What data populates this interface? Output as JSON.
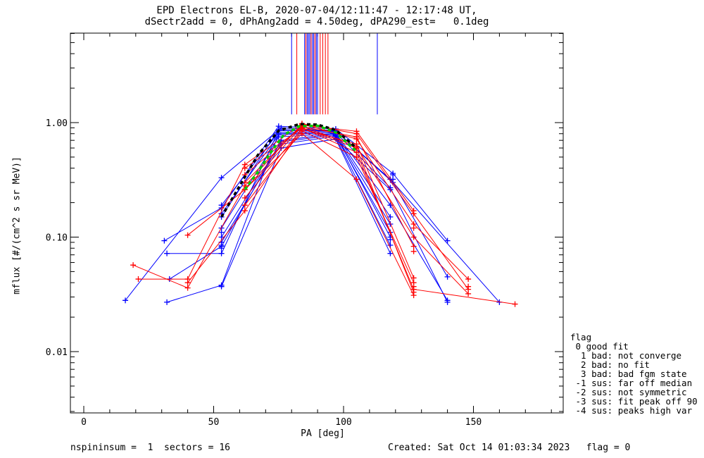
{
  "header": {
    "title_line1": "EPD Electrons EL-B, 2020-07-04/12:11:47 - 12:17:48 UT,",
    "title_line2": "dSectr2add = 0, dPhAng2add = 4.50deg, dPA290_est=   0.1deg"
  },
  "footer": {
    "left": "nspininsum =  1  sectors = 16",
    "right": "Created: Sat Oct 14 01:03:34 2023   flag = 0"
  },
  "legend": {
    "title": "flag",
    "items": [
      " 0 good fit",
      "  1 bad: not converge",
      "  2 bad: no fit",
      "  3 bad: bad fgm state",
      " -1 sus: far off median",
      " -2 sus: not symmetric",
      " -3 sus: fit peak off 90",
      " -4 sus: peaks high var"
    ]
  },
  "colors": {
    "red": "#ff0000",
    "blue": "#0000ff",
    "green": "#00cc00",
    "black": "#000000"
  },
  "chart_data": {
    "type": "line",
    "title": "EPD Electrons EL-B, 2020-07-04/12:11:47 - 12:17:48 UT,",
    "xlabel": "PA [deg]",
    "ylabel": "mflux [#/(cm^2 s sr MeV)]",
    "xlim": [
      -5,
      185
    ],
    "ylim": [
      0.003,
      6
    ],
    "yscale": "log",
    "xticks": [
      0,
      50,
      100,
      150
    ],
    "xtick_labels": [
      "0",
      "50",
      "100",
      "150"
    ],
    "yticks": [
      0.01,
      0.1,
      1.0
    ],
    "ytick_labels": [
      "0.01",
      "0.10",
      "1.00"
    ],
    "grid": false,
    "series": [
      {
        "color": "blue",
        "x": [
          31,
          53,
          75,
          97,
          119,
          140
        ],
        "y": [
          0.093,
          0.18,
          0.93,
          0.88,
          0.36,
          0.093
        ]
      },
      {
        "color": "blue",
        "x": [
          32,
          53,
          75,
          97,
          119,
          140
        ],
        "y": [
          0.072,
          0.072,
          0.85,
          0.85,
          0.3,
          0.045
        ]
      },
      {
        "color": "blue",
        "x": [
          32,
          53,
          75,
          97,
          118,
          140
        ],
        "y": [
          0.027,
          0.038,
          0.8,
          0.82,
          0.27,
          0.027
        ]
      },
      {
        "color": "blue",
        "x": [
          16,
          53,
          76,
          97,
          118,
          160
        ],
        "y": [
          0.028,
          0.33,
          0.9,
          0.85,
          0.32,
          0.027
        ]
      },
      {
        "color": "blue",
        "x": [
          33,
          53,
          76,
          97,
          118,
          140
        ],
        "y": [
          0.043,
          0.083,
          0.7,
          0.8,
          0.19,
          0.028
        ]
      },
      {
        "color": "blue",
        "x": [
          53,
          75,
          96,
          118
        ],
        "y": [
          0.16,
          0.78,
          0.82,
          0.085
        ]
      },
      {
        "color": "blue",
        "x": [
          53,
          75,
          96,
          118
        ],
        "y": [
          0.12,
          0.75,
          0.8,
          0.072
        ]
      },
      {
        "color": "blue",
        "x": [
          53,
          76,
          97,
          118
        ],
        "y": [
          0.1,
          0.68,
          0.78,
          0.1
        ]
      },
      {
        "color": "blue",
        "x": [
          53,
          76,
          97,
          118
        ],
        "y": [
          0.09,
          0.65,
          0.76,
          0.11
        ]
      },
      {
        "color": "blue",
        "x": [
          53,
          75,
          96,
          118
        ],
        "y": [
          0.19,
          0.82,
          0.84,
          0.13
        ]
      },
      {
        "color": "blue",
        "x": [
          53,
          75,
          96,
          118
        ],
        "y": [
          0.15,
          0.87,
          0.86,
          0.15
        ]
      },
      {
        "color": "blue",
        "x": [
          53,
          76,
          97,
          118
        ],
        "y": [
          0.037,
          0.6,
          0.72,
          0.26
        ]
      },
      {
        "color": "red",
        "x": [
          19,
          40,
          62,
          84,
          105,
          127,
          148
        ],
        "y": [
          0.057,
          0.036,
          0.28,
          0.97,
          0.72,
          0.13,
          0.043
        ]
      },
      {
        "color": "red",
        "x": [
          21,
          40,
          62,
          84,
          105,
          127,
          148
        ],
        "y": [
          0.043,
          0.043,
          0.43,
          0.98,
          0.8,
          0.16,
          0.035
        ]
      },
      {
        "color": "red",
        "x": [
          40,
          62,
          84,
          105,
          127,
          148
        ],
        "y": [
          0.104,
          0.26,
          0.93,
          0.62,
          0.1,
          0.032
        ]
      },
      {
        "color": "red",
        "x": [
          40,
          62,
          84,
          105,
          127,
          166
        ],
        "y": [
          0.04,
          0.17,
          0.9,
          0.55,
          0.035,
          0.026
        ]
      },
      {
        "color": "red",
        "x": [
          62,
          84,
          105,
          127
        ],
        "y": [
          0.3,
          0.95,
          0.84,
          0.17
        ]
      },
      {
        "color": "red",
        "x": [
          62,
          84,
          105,
          127
        ],
        "y": [
          0.35,
          0.92,
          0.75,
          0.083
        ]
      },
      {
        "color": "red",
        "x": [
          62,
          84,
          105,
          127
        ],
        "y": [
          0.22,
          0.88,
          0.65,
          0.044
        ]
      },
      {
        "color": "red",
        "x": [
          62,
          84,
          105,
          127
        ],
        "y": [
          0.19,
          0.85,
          0.5,
          0.04
        ]
      },
      {
        "color": "red",
        "x": [
          62,
          84,
          105,
          127
        ],
        "y": [
          0.26,
          0.8,
          0.32,
          0.031
        ]
      },
      {
        "color": "red",
        "x": [
          62,
          84,
          105,
          127
        ],
        "y": [
          0.4,
          0.9,
          0.6,
          0.033
        ]
      },
      {
        "color": "black",
        "style": "dashed-thick",
        "x": [
          53,
          60,
          67,
          75,
          83,
          90,
          97,
          105
        ],
        "y": [
          0.15,
          0.28,
          0.52,
          0.85,
          0.97,
          0.96,
          0.86,
          0.6
        ]
      },
      {
        "color": "green",
        "style": "dashed-thick",
        "x": [
          62,
          67,
          72,
          77,
          83,
          90,
          97,
          105
        ],
        "y": [
          0.26,
          0.37,
          0.55,
          0.78,
          0.93,
          0.94,
          0.82,
          0.56
        ]
      }
    ],
    "markers_only": [
      {
        "color": "blue",
        "x": [
          53,
          53,
          53,
          118,
          119,
          119
        ],
        "y": [
          0.08,
          0.11,
          0.085,
          0.095,
          0.35,
          0.32
        ]
      },
      {
        "color": "red",
        "x": [
          127,
          127,
          127,
          148
        ],
        "y": [
          0.12,
          0.075,
          0.037,
          0.037
        ]
      }
    ],
    "vlines_top": [
      {
        "color": "blue",
        "x": 80
      },
      {
        "color": "red",
        "x": 82
      },
      {
        "color": "blue",
        "x": 85
      },
      {
        "color": "red",
        "x": 85.5
      },
      {
        "color": "blue",
        "x": 86
      },
      {
        "color": "blue",
        "x": 86.5
      },
      {
        "color": "blue",
        "x": 87
      },
      {
        "color": "red",
        "x": 87.5
      },
      {
        "color": "blue",
        "x": 88
      },
      {
        "color": "blue",
        "x": 88.5
      },
      {
        "color": "red",
        "x": 89
      },
      {
        "color": "blue",
        "x": 89.5
      },
      {
        "color": "blue",
        "x": 90
      },
      {
        "color": "red",
        "x": 91
      },
      {
        "color": "red",
        "x": 92
      },
      {
        "color": "red",
        "x": 93
      },
      {
        "color": "red",
        "x": 94
      },
      {
        "color": "blue",
        "x": 113
      }
    ],
    "vline_range": [
      1.18,
      6
    ]
  }
}
